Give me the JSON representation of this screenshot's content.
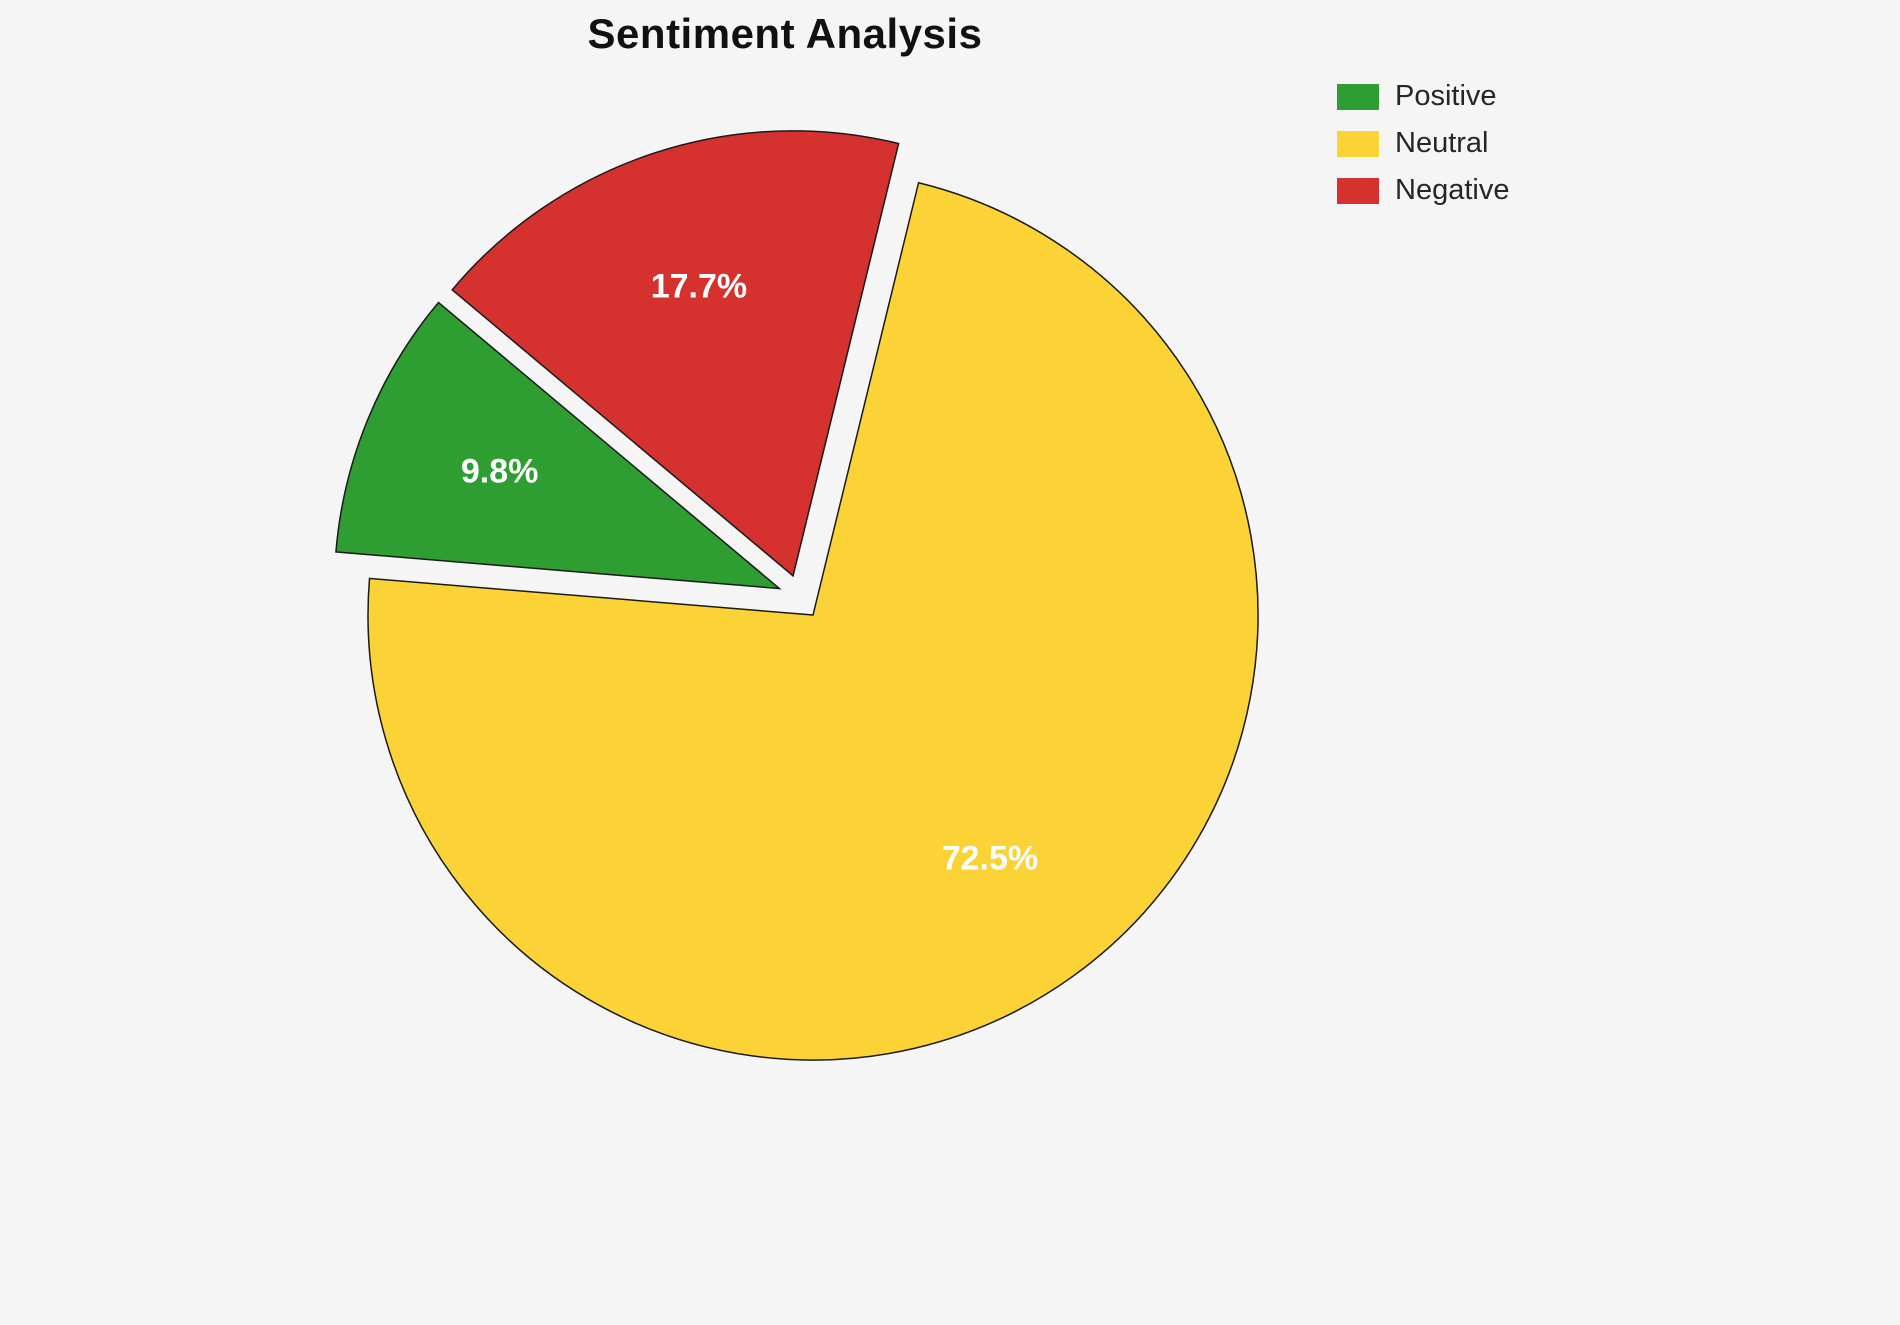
{
  "title": "Sentiment Analysis",
  "chart_data": {
    "type": "pie",
    "labels": [
      "Positive",
      "Neutral",
      "Negative"
    ],
    "values": [
      9.8,
      72.5,
      17.7
    ],
    "pct_labels": [
      "9.8%",
      "72.5%",
      "17.7%"
    ],
    "colors": [
      "#2e9e32",
      "#fbd337",
      "#d4312f"
    ],
    "edge_color": "#1a1a1a",
    "background": "#f5f5f5",
    "pct_label_color": "#ffffff",
    "start_angle": 140,
    "counterclockwise": true,
    "explode": [
      0.05,
      0.05,
      0.05
    ],
    "legend": {
      "position": "upper right",
      "entries": [
        "Positive",
        "Neutral",
        "Negative"
      ]
    }
  }
}
